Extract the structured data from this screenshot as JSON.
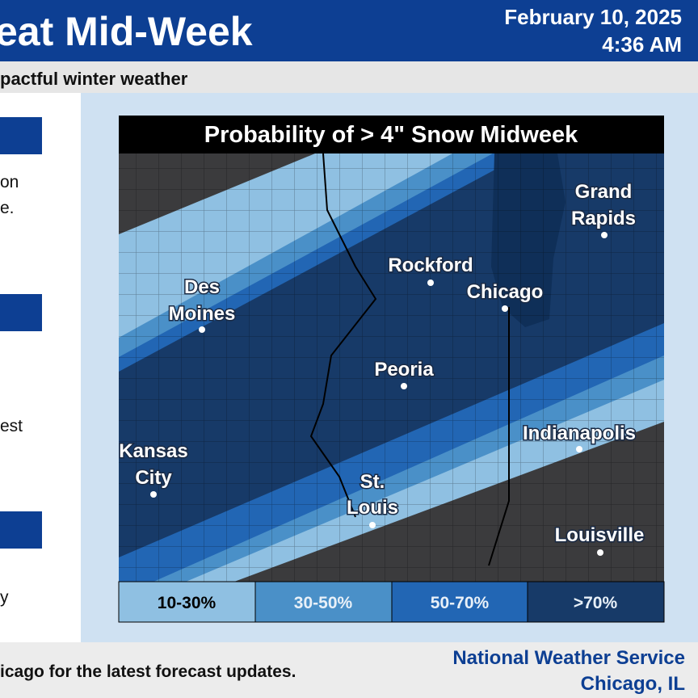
{
  "header": {
    "title": "eat Mid-Week",
    "date": "February 10, 2025",
    "time": "4:36 AM"
  },
  "subtitle": "pactful winter weather",
  "side_panel": {
    "texts": [
      "on",
      "e.",
      "est",
      "y"
    ]
  },
  "map": {
    "title": "Probability of > 4\" Snow Midweek",
    "cities": [
      {
        "lines": [
          "Grand",
          "Rapids"
        ]
      },
      {
        "lines": [
          "Rockford"
        ]
      },
      {
        "lines": [
          "Chicago"
        ]
      },
      {
        "lines": [
          "Des",
          "Moines"
        ]
      },
      {
        "lines": [
          "Peoria"
        ]
      },
      {
        "lines": [
          "Kansas",
          "City"
        ]
      },
      {
        "lines": [
          "St.",
          "Louis"
        ]
      },
      {
        "lines": [
          "Indianapolis"
        ]
      },
      {
        "lines": [
          "Louisville"
        ]
      }
    ],
    "legend": [
      "10-30%",
      "30-50%",
      "50-70%",
      ">70%"
    ]
  },
  "footer": {
    "text": "icago for the latest forecast updates.",
    "agency": "National Weather Service",
    "office": "Chicago, IL"
  }
}
